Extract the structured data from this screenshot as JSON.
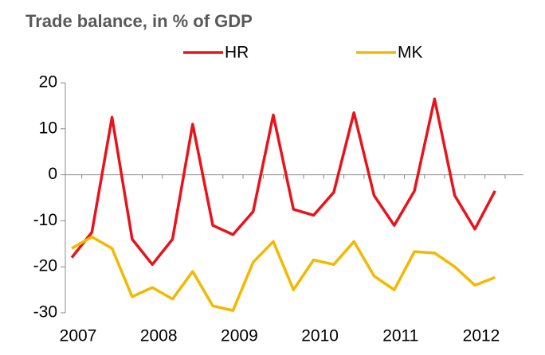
{
  "chart_data": {
    "type": "line",
    "title": "Trade balance, in % of GDP",
    "categories": [
      "2007",
      null,
      null,
      null,
      "2008",
      null,
      null,
      null,
      "2009",
      null,
      null,
      null,
      "2010",
      null,
      null,
      null,
      "2011",
      null,
      null,
      null,
      "2012",
      null
    ],
    "series": [
      {
        "name": "HR",
        "color": "#e8131b",
        "values": [
          -18,
          -12.5,
          12.5,
          -14,
          -19.5,
          -14,
          11,
          -11,
          -13,
          -8,
          13,
          -7.5,
          -8.8,
          -3.8,
          13.5,
          -4.5,
          -11,
          -3.5,
          16.5,
          -4.5,
          -11.8,
          -3.5
        ]
      },
      {
        "name": "MK",
        "color": "#f5b800",
        "values": [
          -16,
          -13.5,
          -16,
          -26.5,
          -24.5,
          -27,
          -21,
          -28.5,
          -29.5,
          -19,
          -14.5,
          -25,
          -18.5,
          -19.5,
          -14.5,
          -22,
          -25,
          -16.7,
          -17,
          -20,
          -24,
          -22.3
        ]
      }
    ],
    "ylim": [
      -30,
      20
    ],
    "yticks": [
      -30,
      -20,
      -10,
      0,
      10,
      20
    ],
    "grid": false
  }
}
